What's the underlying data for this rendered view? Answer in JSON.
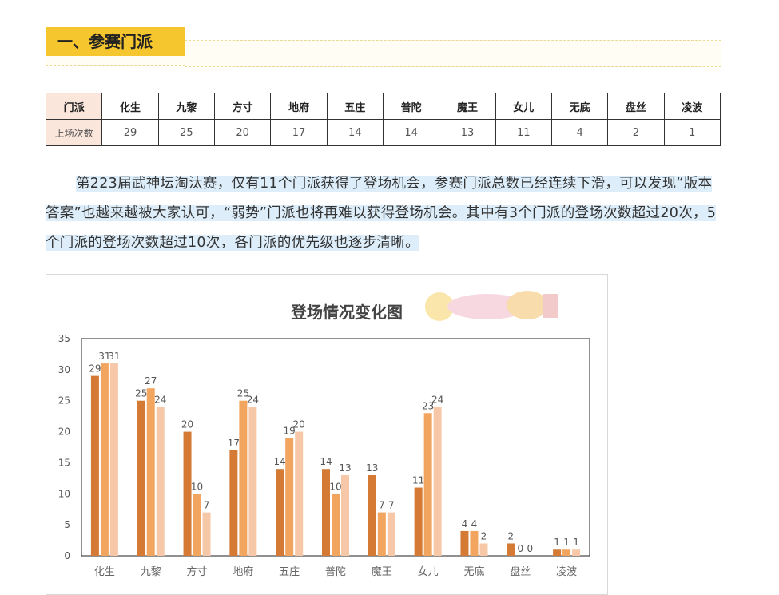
{
  "section": {
    "title": "一、参赛门派"
  },
  "table": {
    "header_label": "门派",
    "row_label": "上场次数",
    "sects": [
      "化生",
      "九黎",
      "方寸",
      "地府",
      "五庄",
      "普陀",
      "魔王",
      "女儿",
      "无底",
      "盘丝",
      "凌波"
    ],
    "counts": [
      "29",
      "25",
      "20",
      "17",
      "14",
      "14",
      "13",
      "11",
      "4",
      "2",
      "1"
    ]
  },
  "paragraph": "第223届武神坛淘汰赛，仅有11个门派获得了登场机会，参赛门派总数已经连续下滑，可以发现“版本答案”也越来越被大家认可，“弱势”门派也将再难以获得登场机会。其中有3个门派的登场次数超过20次，5个门派的登场次数超过10次，各门派的优先级也逐步清晰。",
  "colors": {
    "bar1": "#d47a35",
    "bar2": "#f2a55e",
    "bar3": "#f6c8a8",
    "accent": "#f6c62f"
  },
  "chart_data": {
    "type": "bar",
    "title": "登场情况变化图",
    "categories": [
      "化生",
      "九黎",
      "方寸",
      "地府",
      "五庄",
      "普陀",
      "魔王",
      "女儿",
      "无底",
      "盘丝",
      "凌波"
    ],
    "series": [
      {
        "values": [
          29,
          25,
          20,
          17,
          14,
          14,
          13,
          11,
          4,
          2,
          1
        ]
      },
      {
        "values": [
          31,
          27,
          10,
          25,
          19,
          10,
          7,
          23,
          4,
          0,
          1
        ]
      },
      {
        "values": [
          31,
          24,
          7,
          24,
          20,
          13,
          7,
          24,
          2,
          0,
          1
        ]
      }
    ],
    "ylim": [
      0,
      35
    ],
    "yticks": [
      "0",
      "5",
      "10",
      "15",
      "20",
      "25",
      "30",
      "35"
    ],
    "grid": false,
    "legend": "none"
  }
}
